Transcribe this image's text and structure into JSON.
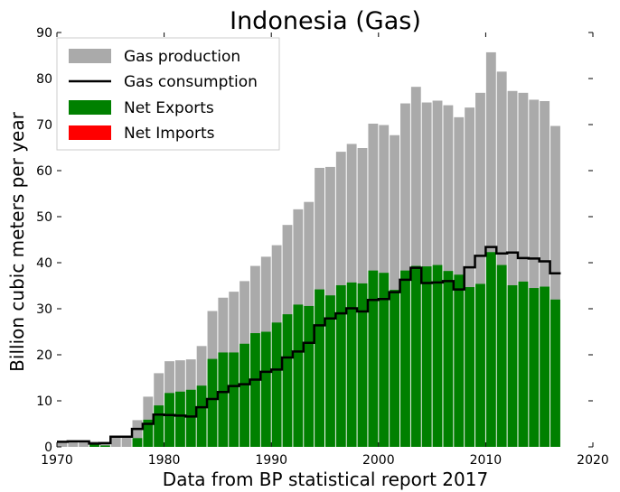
{
  "chart_data": {
    "type": "bar",
    "title": "Indonesia (Gas)",
    "xlabel": "Data from BP statistical report 2017",
    "ylabel": "Billion cubic meters per year",
    "xlim": [
      1970,
      2020
    ],
    "ylim": [
      0,
      90
    ],
    "xticks": [
      "1970",
      "1980",
      "1990",
      "2000",
      "2010",
      "2020"
    ],
    "yticks": [
      "0",
      "10",
      "20",
      "30",
      "40",
      "50",
      "60",
      "70",
      "80",
      "90"
    ],
    "grid": false,
    "legend_position": "top-left",
    "colors": {
      "production": "#aaaaaa",
      "consumption": "#000000",
      "exports": "#008000",
      "imports": "#ff0000"
    },
    "legend": [
      "Gas production",
      "Gas consumption",
      "Net Exports",
      "Net Imports"
    ],
    "x": [
      1970,
      1971,
      1972,
      1973,
      1974,
      1975,
      1976,
      1977,
      1978,
      1979,
      1980,
      1981,
      1982,
      1983,
      1984,
      1985,
      1986,
      1987,
      1988,
      1989,
      1990,
      1991,
      1992,
      1993,
      1994,
      1995,
      1996,
      1997,
      1998,
      1999,
      2000,
      2001,
      2002,
      2003,
      2004,
      2005,
      2006,
      2007,
      2008,
      2009,
      2010,
      2011,
      2012,
      2013,
      2014,
      2015,
      2016
    ],
    "series": [
      {
        "name": "Gas production",
        "type": "bar",
        "values": [
          1.1,
          1.2,
          1.2,
          1.2,
          1.1,
          2.2,
          2.2,
          5.8,
          10.9,
          16.0,
          18.6,
          18.8,
          19.0,
          21.9,
          29.5,
          32.4,
          33.7,
          36.0,
          39.3,
          41.3,
          43.8,
          48.2,
          51.6,
          53.2,
          60.6,
          60.8,
          64.1,
          65.8,
          64.9,
          70.2,
          69.9,
          67.7,
          74.6,
          78.2,
          74.8,
          75.2,
          74.2,
          71.6,
          73.7,
          76.9,
          85.7,
          81.5,
          77.3,
          76.9,
          75.4,
          75.1,
          69.7
        ]
      },
      {
        "name": "Gas consumption",
        "type": "step",
        "values": [
          1.1,
          1.2,
          1.2,
          0.7,
          0.8,
          2.2,
          2.2,
          3.9,
          5.0,
          7.0,
          6.9,
          6.8,
          6.6,
          8.6,
          10.4,
          11.9,
          13.2,
          13.6,
          14.6,
          16.3,
          16.8,
          19.4,
          20.7,
          22.6,
          26.4,
          27.9,
          29.0,
          30.1,
          29.4,
          31.9,
          32.1,
          33.6,
          36.3,
          38.9,
          35.6,
          35.7,
          36.0,
          34.2,
          39.0,
          41.5,
          43.4,
          42.0,
          42.2,
          41.0,
          40.9,
          40.3,
          37.7
        ]
      },
      {
        "name": "Net Exports",
        "type": "bar",
        "values": [
          0,
          0,
          0,
          0.5,
          0.3,
          0,
          0,
          1.9,
          5.9,
          9.0,
          11.7,
          12.0,
          12.4,
          13.3,
          19.1,
          20.5,
          20.5,
          22.4,
          24.7,
          25.0,
          27.0,
          28.8,
          30.9,
          30.6,
          34.2,
          32.9,
          35.1,
          35.7,
          35.5,
          38.3,
          37.8,
          34.1,
          38.3,
          39.3,
          39.2,
          39.5,
          38.2,
          37.4,
          34.7,
          35.4,
          42.3,
          39.5,
          35.1,
          35.9,
          34.5,
          34.8,
          32.0
        ]
      },
      {
        "name": "Net Imports",
        "type": "bar",
        "values": [
          0,
          0,
          0,
          0,
          0,
          0,
          0,
          0,
          0,
          0,
          0,
          0,
          0,
          0,
          0,
          0,
          0,
          0,
          0,
          0,
          0,
          0,
          0,
          0,
          0,
          0,
          0,
          0,
          0,
          0,
          0,
          0,
          0,
          0,
          0,
          0,
          0,
          0,
          0,
          0,
          0,
          0,
          0,
          0,
          0,
          0,
          0
        ]
      }
    ]
  }
}
